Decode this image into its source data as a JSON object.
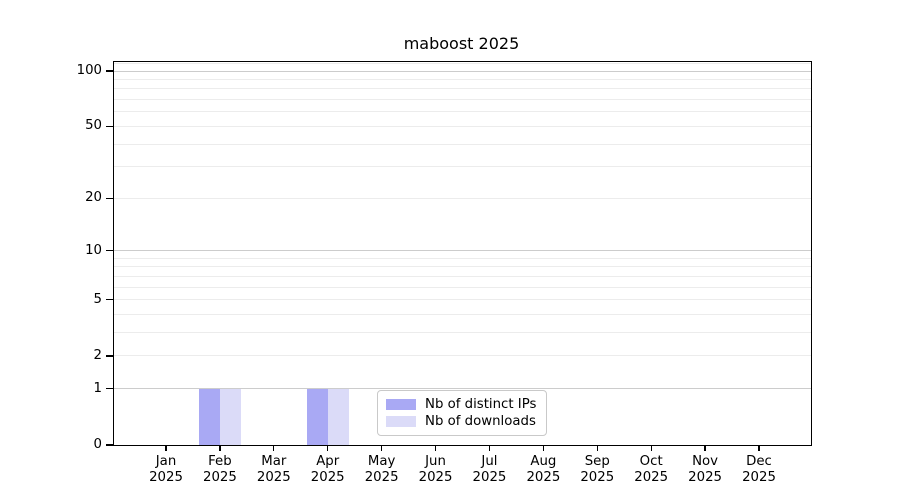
{
  "chart_data": {
    "type": "bar",
    "title": "maboost 2025",
    "categories": [
      "Jan",
      "Feb",
      "Mar",
      "Apr",
      "May",
      "Jun",
      "Jul",
      "Aug",
      "Sep",
      "Oct",
      "Nov",
      "Dec"
    ],
    "tick_year": "2025",
    "series": [
      {
        "name": "Nb of distinct IPs",
        "color": "#a9a9f4",
        "values": [
          0,
          1,
          0,
          1,
          0,
          0,
          0,
          0,
          0,
          0,
          0,
          0
        ]
      },
      {
        "name": "Nb of downloads",
        "color": "#dbdbf8",
        "values": [
          0,
          1,
          0,
          1,
          0,
          0,
          0,
          0,
          0,
          0,
          0,
          0
        ]
      }
    ],
    "xlabel": "",
    "ylabel": "",
    "yscale": "log1p",
    "ylim": [
      0,
      112
    ],
    "yticks": [
      0,
      1,
      2,
      5,
      10,
      20,
      50,
      100
    ],
    "yticks_minor": [
      3,
      4,
      6,
      7,
      8,
      9,
      30,
      40,
      60,
      70,
      80,
      90,
      110
    ],
    "grid": "horizontal",
    "legend_position": "inside-lower-center"
  },
  "colors": {
    "bar_distinct_ips": "#a9a9f4",
    "bar_downloads": "#dbdbf8",
    "grid_major": "#cccccc",
    "grid_minor": "#ececec",
    "axis": "#000000",
    "legend_border": "#c9c9c9"
  }
}
